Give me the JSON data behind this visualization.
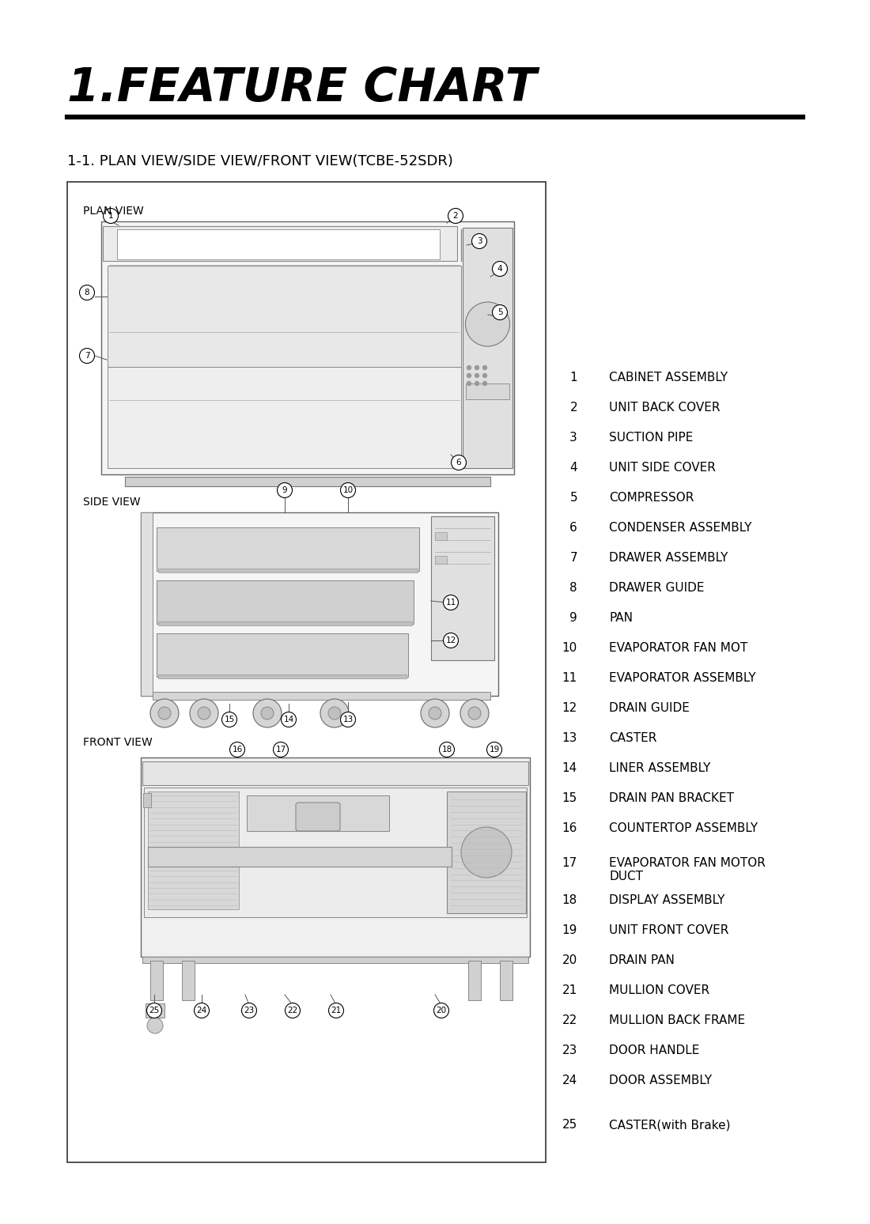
{
  "title": "1.FEATURE CHART",
  "subtitle": "1-1. PLAN VIEW/SIDE VIEW/FRONT VIEW(TCBE-52SDR)",
  "background": "#ffffff",
  "parts": [
    {
      "num": 1,
      "desc": "CABINET ASSEMBLY"
    },
    {
      "num": 2,
      "desc": "UNIT BACK COVER"
    },
    {
      "num": 3,
      "desc": "SUCTION PIPE"
    },
    {
      "num": 4,
      "desc": "UNIT SIDE COVER"
    },
    {
      "num": 5,
      "desc": "COMPRESSOR"
    },
    {
      "num": 6,
      "desc": "CONDENSER ASSEMBLY"
    },
    {
      "num": 7,
      "desc": "DRAWER ASSEMBLY"
    },
    {
      "num": 8,
      "desc": "DRAWER GUIDE"
    },
    {
      "num": 9,
      "desc": "PAN"
    },
    {
      "num": 10,
      "desc": "EVAPORATOR FAN MOT"
    },
    {
      "num": 11,
      "desc": "EVAPORATOR ASSEMBLY"
    },
    {
      "num": 12,
      "desc": "DRAIN GUIDE"
    },
    {
      "num": 13,
      "desc": "CASTER"
    },
    {
      "num": 14,
      "desc": "LINER ASSEMBLY"
    },
    {
      "num": 15,
      "desc": "DRAIN PAN BRACKET"
    },
    {
      "num": 16,
      "desc": "COUNTERTOP ASSEMBLY"
    },
    {
      "num": 17,
      "desc": "EVAPORATOR FAN MOTOR\nDUCT"
    },
    {
      "num": 18,
      "desc": "DISPLAY ASSEMBLY"
    },
    {
      "num": 19,
      "desc": "UNIT FRONT COVER"
    },
    {
      "num": 20,
      "desc": "DRAIN PAN"
    },
    {
      "num": 21,
      "desc": "MULLION COVER"
    },
    {
      "num": 22,
      "desc": "MULLION BACK FRAME"
    },
    {
      "num": 23,
      "desc": "DOOR HANDLE"
    },
    {
      "num": 24,
      "desc": "DOOR ASSEMBLY"
    },
    {
      "num": 25,
      "desc": "CASTER(with Brake)"
    }
  ]
}
